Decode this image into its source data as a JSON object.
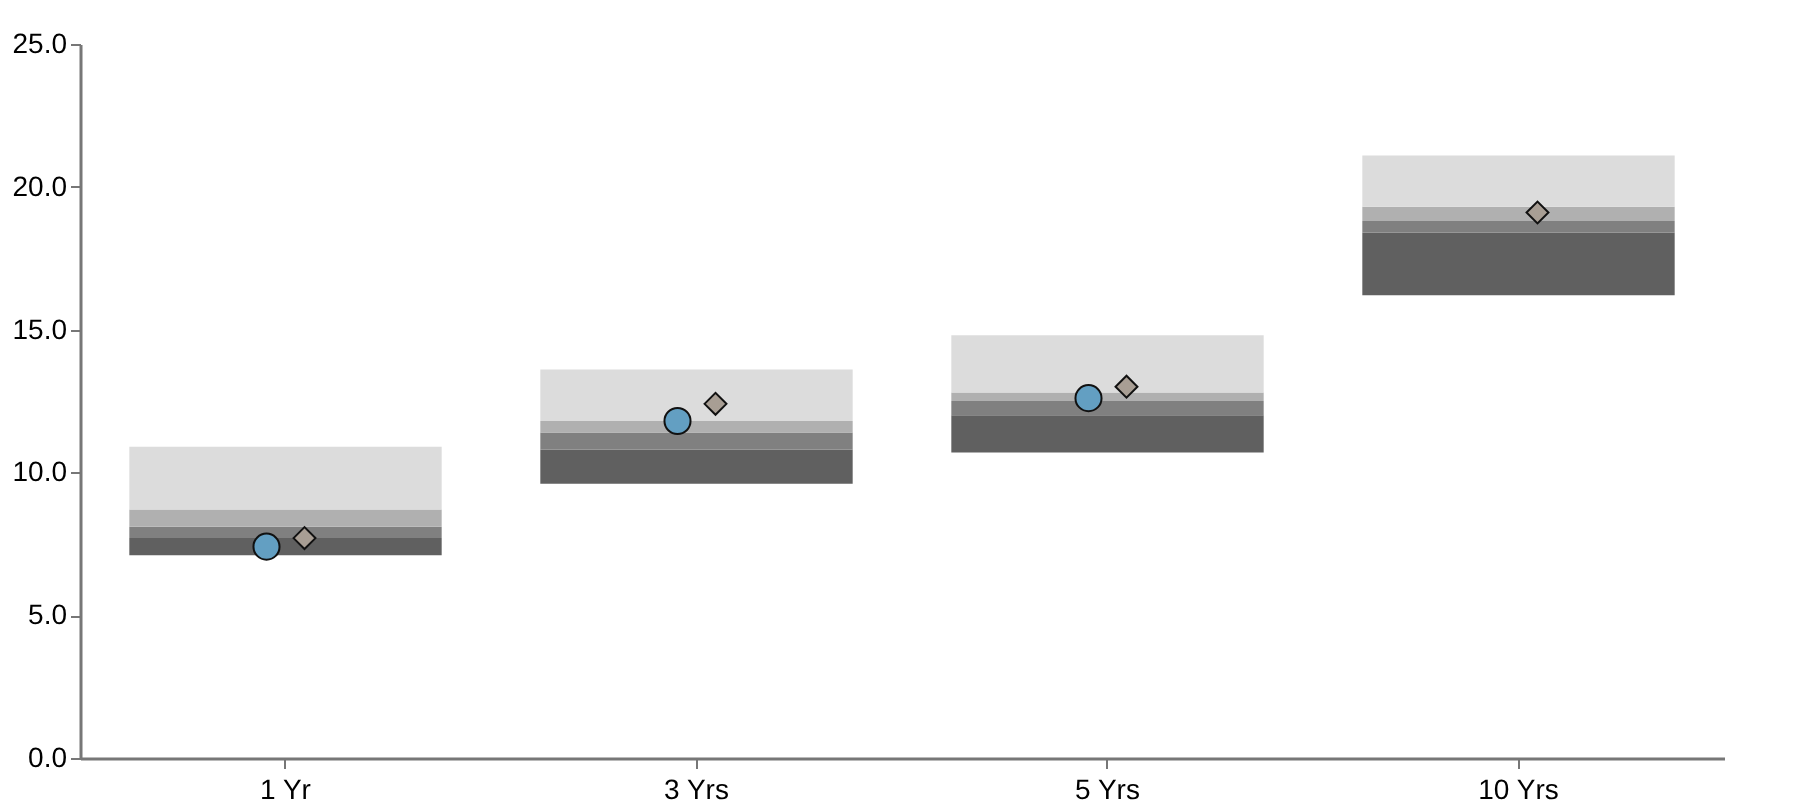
{
  "chart_data": {
    "type": "bar",
    "categories": [
      "1 Yr",
      "3 Yrs",
      "5 Yrs",
      "10 Yrs"
    ],
    "series": [
      {
        "color": "#606060",
        "base": [
          7.1,
          9.6,
          10.7,
          16.2
        ],
        "values": [
          0.6,
          1.2,
          1.3,
          2.2
        ]
      },
      {
        "color": "#808080",
        "base": [
          7.7,
          10.8,
          12.0,
          18.4
        ],
        "values": [
          0.4,
          0.6,
          0.5,
          0.4
        ]
      },
      {
        "color": "#b0b0b0",
        "base": [
          8.1,
          11.4,
          12.5,
          18.8
        ],
        "values": [
          0.6,
          0.4,
          0.3,
          0.5
        ]
      },
      {
        "color": "#dcdcdc",
        "base": [
          8.7,
          11.8,
          12.8,
          19.3
        ],
        "values": [
          2.2,
          1.8,
          2.0,
          1.8
        ]
      },
      {
        "type": "scatter",
        "marker": "circle",
        "color": "#639fc2",
        "x": [
          "1 Yr",
          "3 Yrs",
          "5 Yrs",
          "10 Yrs"
        ],
        "values": [
          7.4,
          11.8,
          12.6,
          null
        ]
      },
      {
        "type": "scatter",
        "marker": "diamond",
        "color": "#a89e94",
        "x": [
          "1 Yr",
          "3 Yrs",
          "5 Yrs",
          "10 Yrs"
        ],
        "values": [
          7.7,
          12.4,
          13.0,
          19.1
        ]
      }
    ],
    "ylim": [
      0,
      25
    ],
    "yticks": [
      {
        "value": 0,
        "label": "0.0"
      },
      {
        "value": 5,
        "label": "5.0"
      },
      {
        "value": 10,
        "label": "10.0"
      },
      {
        "value": 15,
        "label": "15.0"
      },
      {
        "value": 20,
        "label": "20.0"
      },
      {
        "value": 25,
        "label": "25.0"
      }
    ],
    "grid": false
  }
}
